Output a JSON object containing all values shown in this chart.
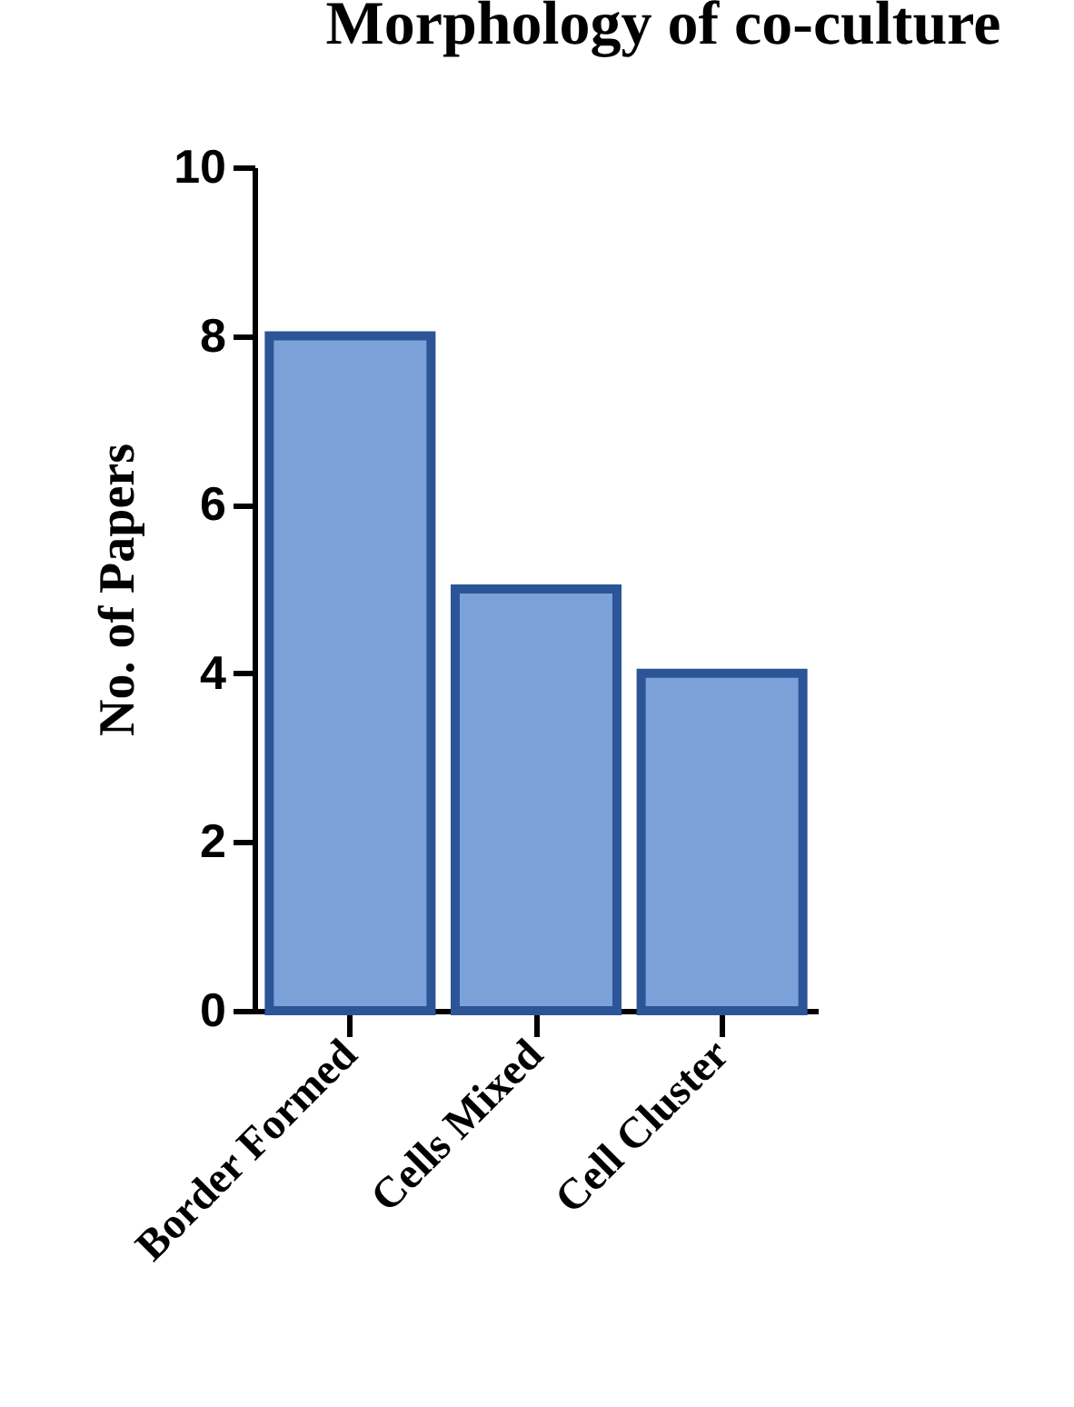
{
  "chart_data": {
    "type": "bar",
    "title": "Morphology of co-culture",
    "ylabel": "No. of Papers",
    "categories": [
      "Border Formed",
      "Cells Mixed",
      "Cell Cluster"
    ],
    "values": [
      8,
      5,
      4
    ],
    "color": "#7ca1d9",
    "ylim": [
      0,
      10
    ],
    "yticks": [
      0,
      2,
      4,
      6,
      8,
      10
    ],
    "grid": false
  }
}
